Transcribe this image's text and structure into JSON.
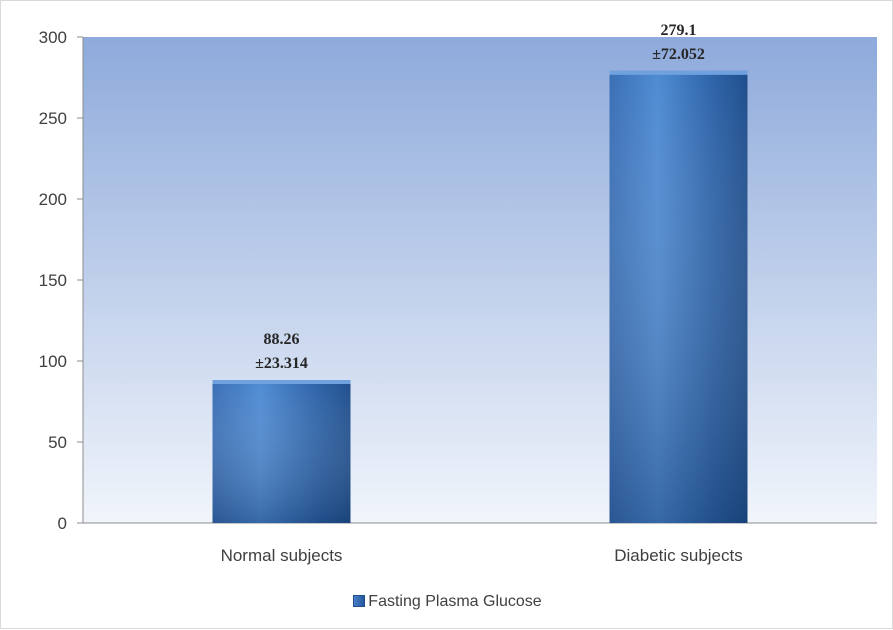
{
  "chart_data": {
    "type": "bar",
    "categories": [
      "Normal subjects",
      "Diabetic subjects"
    ],
    "series": [
      {
        "name": "Fasting Plasma Glucose",
        "values": [
          88.26,
          279.1
        ],
        "errors": [
          "±23.314",
          "±72.052"
        ],
        "value_labels": [
          "88.26",
          "279.1"
        ]
      }
    ],
    "ylim": [
      0,
      300
    ],
    "yticks": [
      0,
      50,
      100,
      150,
      200,
      250,
      300
    ],
    "grid": false,
    "legend_position": "bottom"
  },
  "colors": {
    "plot_bg_top": "#8eaadb",
    "plot_bg_bottom": "#f1f5fb",
    "bar_light": "#4f8bd2",
    "bar_dark": "#1f4e8c",
    "bar_top": "#6fa1de"
  }
}
